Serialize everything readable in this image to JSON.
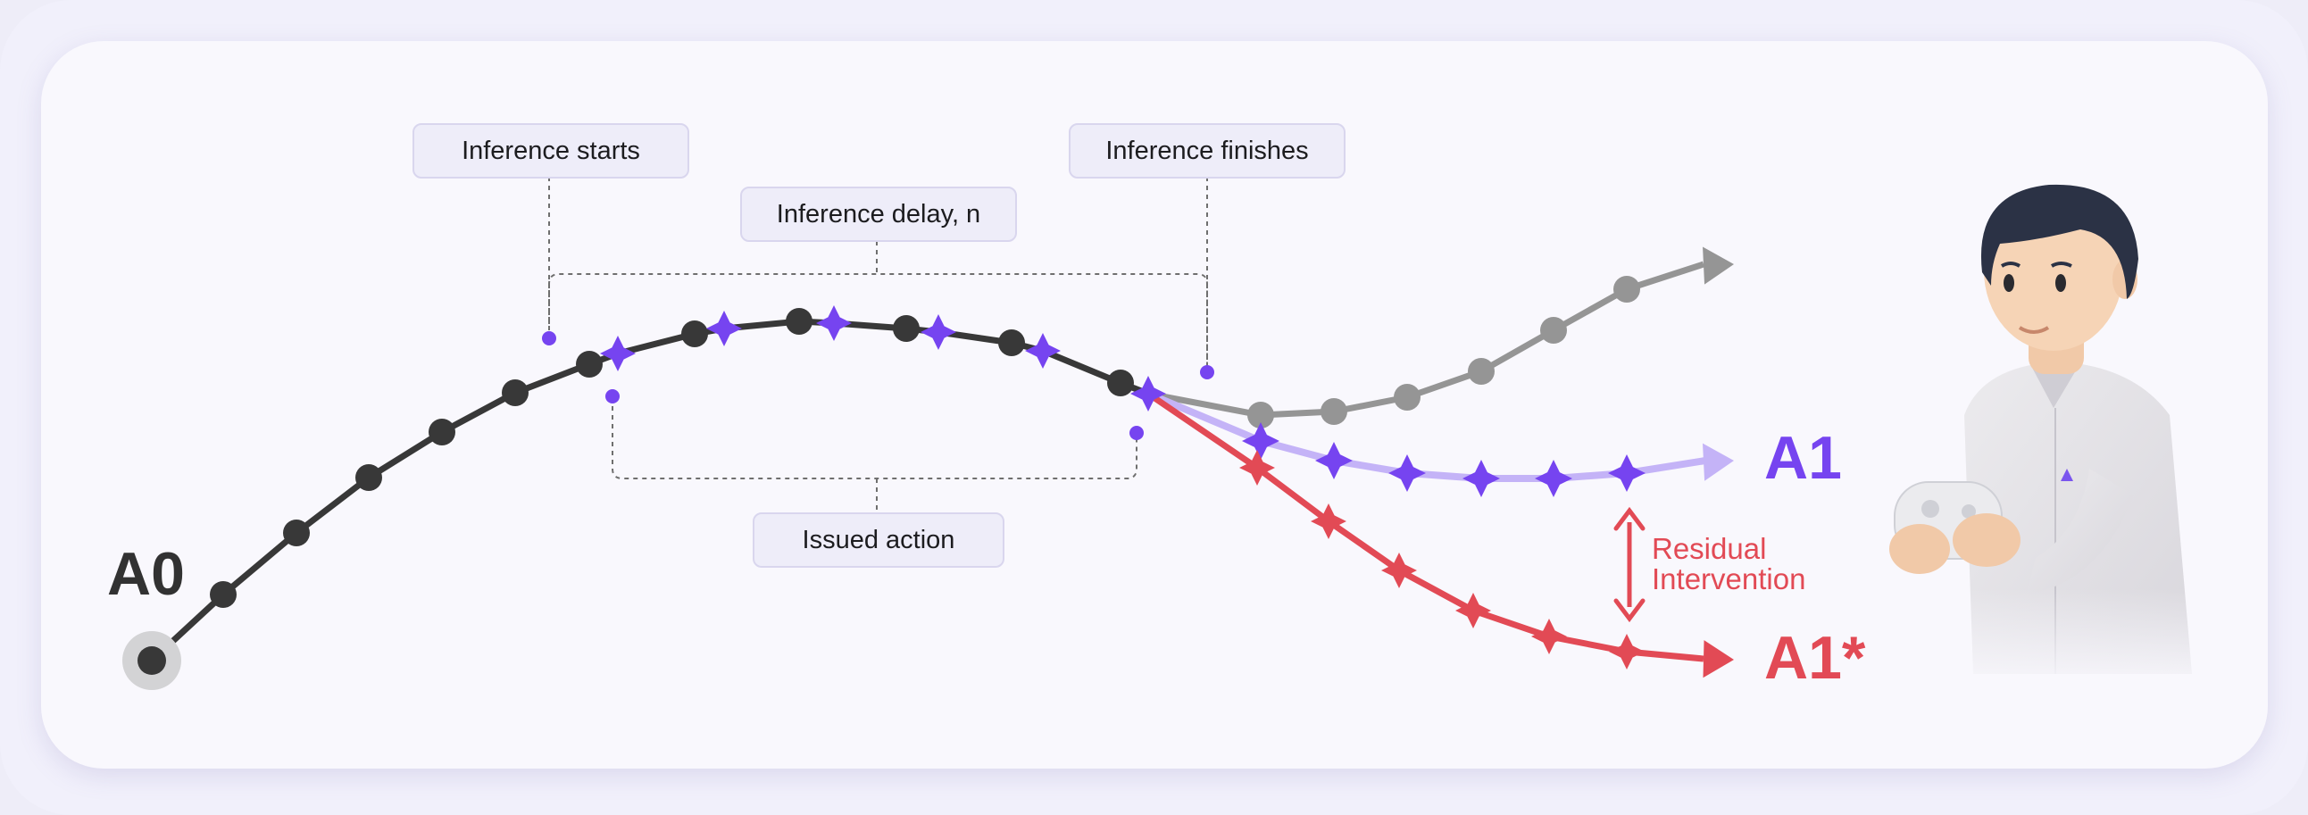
{
  "callouts": {
    "inference_starts": "Inference starts",
    "inference_delay": "Inference delay, n",
    "inference_finishes": "Inference finishes",
    "issued_action": "Issued action"
  },
  "labels": {
    "a0": "A0",
    "a1": "A1",
    "a1_star": "A1*",
    "residual_line1": "Residual",
    "residual_line2": "Intervention"
  },
  "colors": {
    "base_path": "#383838",
    "purple": "#7644f0",
    "light_purple": "#c4b3f7",
    "gray": "#959595",
    "red": "#e24a55",
    "bracket": "#6f6f6f"
  },
  "icons": {
    "start_marker": "circle-halo-icon",
    "action_point": "filled-circle-icon",
    "issued_action": "four-point-star-icon",
    "arrowhead": "arrowhead-icon",
    "residual_arrow": "double-arrow-icon",
    "operator": "person-with-game-controller-illustration"
  }
}
